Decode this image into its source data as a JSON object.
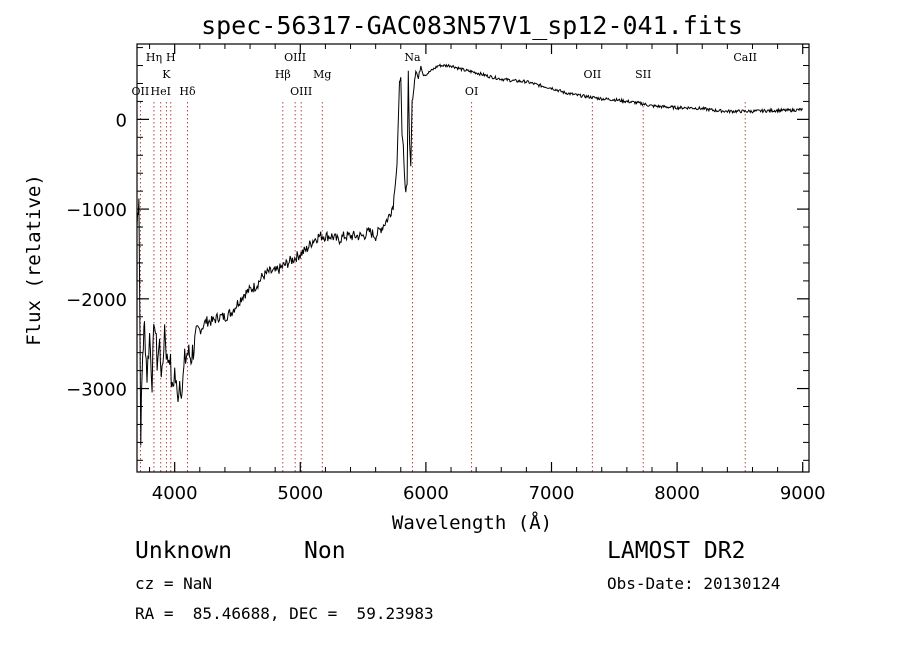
{
  "chart_data": {
    "type": "line",
    "title": "spec-56317-GAC083N57V1_sp12-041.fits",
    "xlabel": "Wavelength (Å)",
    "ylabel": "Flux (relative)",
    "xlim": [
      3700,
      9050
    ],
    "ylim": [
      -3930,
      840
    ],
    "x_ticks": [
      4000,
      5000,
      6000,
      7000,
      8000,
      9000
    ],
    "x_tick_labels": [
      "4000",
      "5000",
      "6000",
      "7000",
      "8000",
      "9000"
    ],
    "y_ticks": [
      0,
      -1000,
      -2000,
      -3000
    ],
    "y_tick_labels": [
      "0",
      "−1000",
      "−2000",
      "−3000"
    ],
    "grid": false,
    "series": [
      {
        "color": "#000000",
        "x": [
          3700,
          3715,
          3730,
          3745,
          3760,
          3780,
          3800,
          3820,
          3840,
          3860,
          3880,
          3900,
          3920,
          3940,
          3960,
          3980,
          4000,
          4020,
          4040,
          4060,
          4080,
          4100,
          4130,
          4160,
          4200,
          4250,
          4300,
          4350,
          4400,
          4450,
          4500,
          4550,
          4600,
          4650,
          4700,
          4750,
          4800,
          4850,
          4900,
          4950,
          5000,
          5050,
          5100,
          5150,
          5200,
          5250,
          5300,
          5350,
          5400,
          5450,
          5500,
          5550,
          5600,
          5650,
          5700,
          5740,
          5770,
          5790,
          5800,
          5810,
          5820,
          5830,
          5840,
          5850,
          5860,
          5870,
          5880,
          5890,
          5900,
          5910,
          5920,
          5940,
          5960,
          5980,
          6000,
          6050,
          6100,
          6150,
          6200,
          6300,
          6400,
          6500,
          6600,
          6700,
          6800,
          6900,
          7000,
          7100,
          7200,
          7300,
          7400,
          7500,
          7600,
          7700,
          7800,
          7900,
          8000,
          8100,
          8200,
          8300,
          8400,
          8500,
          8600,
          8700,
          8800,
          8900,
          9000
        ],
        "y": [
          -1200,
          -800,
          -3500,
          -2600,
          -2300,
          -2850,
          -2400,
          -2900,
          -2200,
          -2700,
          -2500,
          -2900,
          -2300,
          -2700,
          -2600,
          -3050,
          -2800,
          -3100,
          -2900,
          -3000,
          -2700,
          -2600,
          -2650,
          -2500,
          -2350,
          -2250,
          -2250,
          -2200,
          -2200,
          -2150,
          -2050,
          -1950,
          -1900,
          -1850,
          -1750,
          -1700,
          -1700,
          -1650,
          -1600,
          -1550,
          -1500,
          -1450,
          -1350,
          -1300,
          -1300,
          -1300,
          -1350,
          -1300,
          -1300,
          -1300,
          -1300,
          -1250,
          -1300,
          -1200,
          -1100,
          -950,
          -500,
          400,
          500,
          -200,
          -300,
          -650,
          -800,
          -700,
          550,
          -300,
          -500,
          200,
          300,
          450,
          550,
          450,
          600,
          500,
          500,
          550,
          600,
          600,
          600,
          550,
          520,
          480,
          450,
          430,
          420,
          380,
          350,
          300,
          270,
          250,
          230,
          220,
          200,
          180,
          150,
          140,
          130,
          130,
          120,
          100,
          90,
          90,
          90,
          95,
          100,
          100,
          110
        ]
      }
    ],
    "annotations": [
      {
        "text": "OII",
        "x": 3727,
        "row": 3
      },
      {
        "text": "Hη",
        "x": 3835,
        "row": 1
      },
      {
        "text": "HeI",
        "x": 3889,
        "row": 3
      },
      {
        "text": "K",
        "x": 3934,
        "row": 2
      },
      {
        "text": "H",
        "x": 3969,
        "row": 1
      },
      {
        "text": "Hδ",
        "x": 4102,
        "row": 3
      },
      {
        "text": "Hβ",
        "x": 4861,
        "row": 2
      },
      {
        "text": "OIII",
        "x": 4959,
        "row": 1
      },
      {
        "text": "OIII",
        "x": 5007,
        "row": 3
      },
      {
        "text": "Mg",
        "x": 5175,
        "row": 2
      },
      {
        "text": "Na",
        "x": 5893,
        "row": 1
      },
      {
        "text": "OI",
        "x": 6364,
        "row": 3
      },
      {
        "text": "OII",
        "x": 7325,
        "row": 2
      },
      {
        "text": "SII",
        "x": 7730,
        "row": 2
      },
      {
        "text": "CaII",
        "x": 8542,
        "row": 1
      }
    ]
  },
  "footer": {
    "object_class": "Unknown",
    "subclass": "Non",
    "survey": "LAMOST DR2",
    "cz": "cz = NaN",
    "obs_date": "Obs-Date: 20130124",
    "coords": "RA =  85.46688, DEC =  59.23983"
  }
}
